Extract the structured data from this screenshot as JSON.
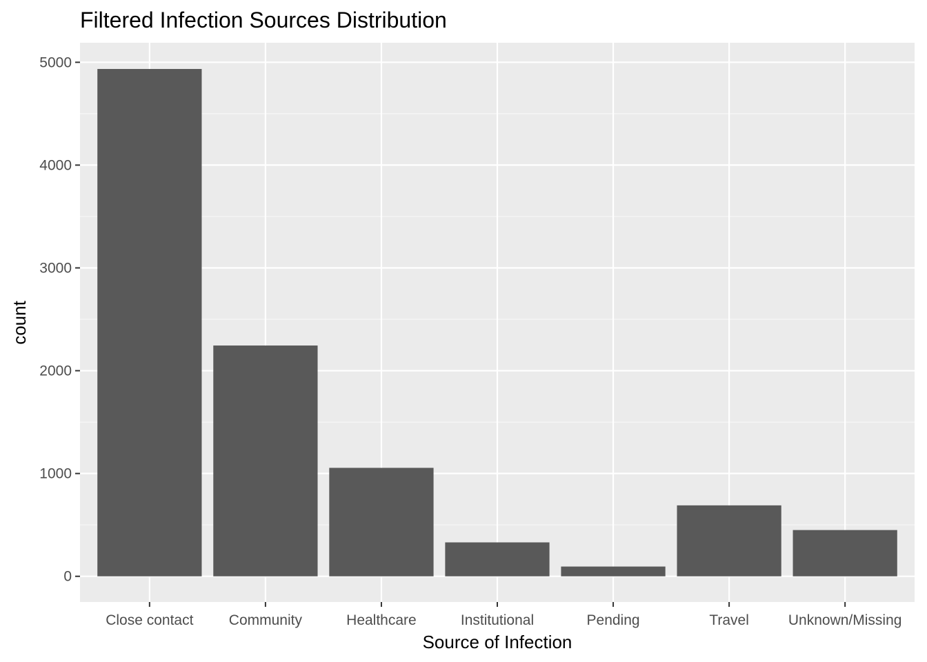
{
  "chart_data": {
    "type": "bar",
    "title": "Filtered Infection Sources Distribution",
    "xlabel": "Source of Infection",
    "ylabel": "count",
    "categories": [
      "Close contact",
      "Community",
      "Healthcare",
      "Institutional",
      "Pending",
      "Travel",
      "Unknown/Missing"
    ],
    "values": [
      4935,
      2245,
      1055,
      330,
      95,
      690,
      450
    ],
    "yticks": [
      0,
      1000,
      2000,
      3000,
      4000,
      5000
    ],
    "ylim": [
      -250,
      5190
    ],
    "grid": true,
    "legend": "none",
    "colors": {
      "bar": "#595959",
      "panel": "#ebebeb",
      "grid_major": "#ffffff",
      "grid_minor": "#f7f7f7",
      "tick_text": "#4d4d4d",
      "tick_mark": "#333333"
    }
  }
}
